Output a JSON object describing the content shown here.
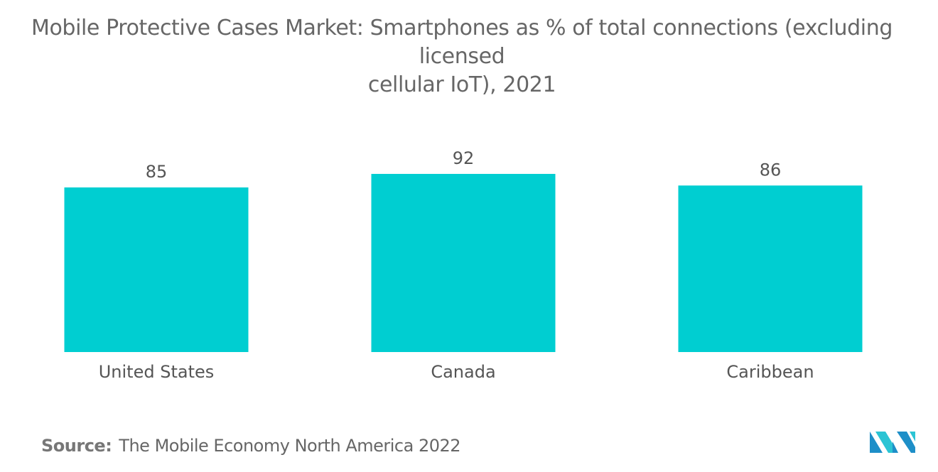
{
  "title": {
    "line1": "Mobile Protective Cases Market: Smartphones as % of total connections (excluding licensed",
    "line2": "cellular IoT), 2021"
  },
  "source": {
    "label": "Source:",
    "text": "The Mobile Economy North America 2022"
  },
  "colors": {
    "bar": "#00CED1",
    "text": "#555555"
  },
  "logo": {
    "icon": "mordor-intelligence-logo-icon",
    "colors": [
      "#1E8FC8",
      "#2BC4D4"
    ]
  },
  "chart_data": {
    "type": "bar",
    "categories": [
      "United States",
      "Canada",
      "Caribbean"
    ],
    "values": [
      85,
      92,
      86
    ],
    "title": "Mobile Protective Cases Market: Smartphones as % of total connections (excluding licensed cellular IoT), 2021",
    "xlabel": "",
    "ylabel": "",
    "ylim": [
      0,
      92
    ],
    "grid": false,
    "data_labels": true
  }
}
